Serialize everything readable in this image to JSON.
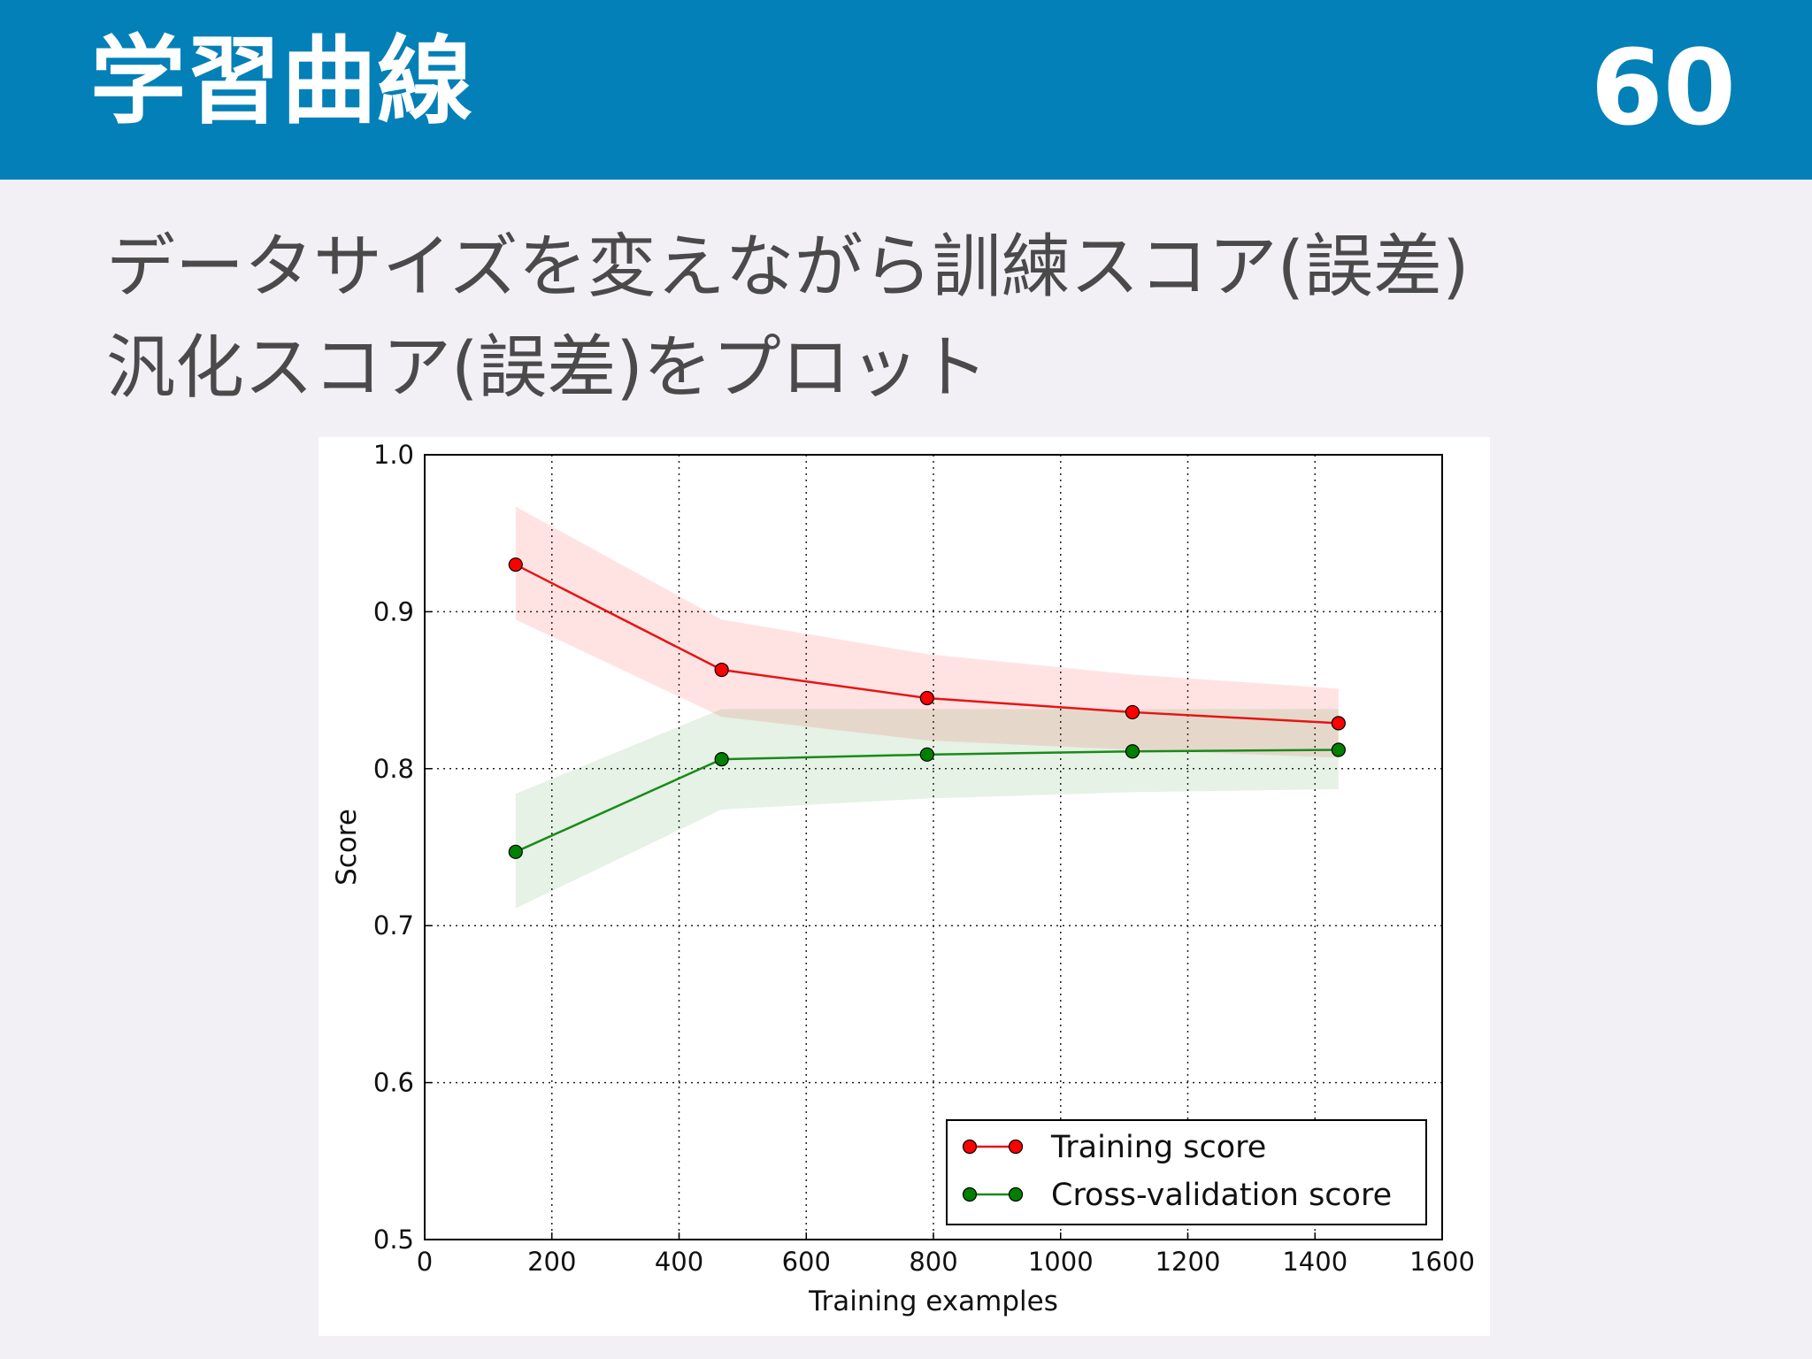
{
  "slide": {
    "title": "学習曲線",
    "page_number": "60",
    "line1": "データサイズを変えながら訓練スコア(誤差)",
    "line2": "汎化スコア(誤差)をプロット"
  },
  "colors": {
    "header_bg": "#0380b7",
    "training": "#ff0000",
    "training_line": "#e81414",
    "cv": "#008000",
    "cv_line": "#1a8a1a"
  },
  "chart_data": {
    "type": "line",
    "xlabel": "Training examples",
    "ylabel": "Score",
    "xlim": [
      0,
      1600
    ],
    "ylim": [
      0.5,
      1.0
    ],
    "xticks": [
      "0",
      "200",
      "400",
      "600",
      "800",
      "1000",
      "1200",
      "1400",
      "1600"
    ],
    "yticks": [
      "0.5",
      "0.6",
      "0.7",
      "0.8",
      "0.9",
      "1.0"
    ],
    "grid": true,
    "legend_position": "lower-right",
    "x": [
      143,
      467,
      790,
      1113,
      1437
    ],
    "series": [
      {
        "name": "Training score",
        "values": [
          0.93,
          0.863,
          0.845,
          0.836,
          0.829
        ],
        "band_upper": [
          0.967,
          0.895,
          0.873,
          0.86,
          0.851
        ],
        "band_lower": [
          0.895,
          0.833,
          0.818,
          0.812,
          0.807
        ]
      },
      {
        "name": "Cross-validation score",
        "values": [
          0.747,
          0.806,
          0.809,
          0.811,
          0.812
        ],
        "band_upper": [
          0.784,
          0.838,
          0.838,
          0.838,
          0.838
        ],
        "band_lower": [
          0.711,
          0.774,
          0.781,
          0.785,
          0.787
        ]
      }
    ]
  }
}
